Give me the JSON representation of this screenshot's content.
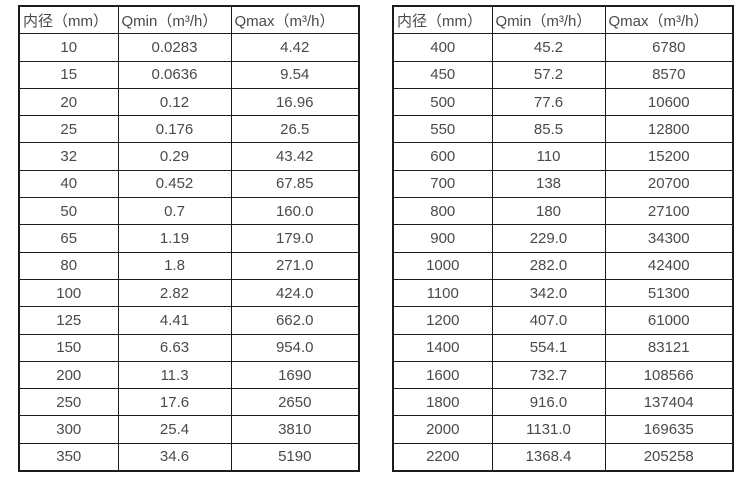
{
  "page": {
    "background_color": "#ffffff",
    "border_color": "#1c1c1c",
    "text_color": "#4a4a4a"
  },
  "tables": [
    {
      "name": "flow-spec-small-diameters",
      "headers": [
        "内径（mm）",
        "Qmin（m³/h）",
        "Qmax（m³/h）"
      ],
      "rows": [
        [
          "10",
          "0.0283",
          "4.42"
        ],
        [
          "15",
          "0.0636",
          "9.54"
        ],
        [
          "20",
          "0.12",
          "16.96"
        ],
        [
          "25",
          "0.176",
          "26.5"
        ],
        [
          "32",
          "0.29",
          "43.42"
        ],
        [
          "40",
          "0.452",
          "67.85"
        ],
        [
          "50",
          "0.7",
          "160.0"
        ],
        [
          "65",
          "1.19",
          "179.0"
        ],
        [
          "80",
          "1.8",
          "271.0"
        ],
        [
          "100",
          "2.82",
          "424.0"
        ],
        [
          "125",
          "4.41",
          "662.0"
        ],
        [
          "150",
          "6.63",
          "954.0"
        ],
        [
          "200",
          "11.3",
          "1690"
        ],
        [
          "250",
          "17.6",
          "2650"
        ],
        [
          "300",
          "25.4",
          "3810"
        ],
        [
          "350",
          "34.6",
          "5190"
        ]
      ]
    },
    {
      "name": "flow-spec-large-diameters",
      "headers": [
        "内径（mm）",
        "Qmin（m³/h）",
        "Qmax（m³/h）"
      ],
      "rows": [
        [
          "400",
          "45.2",
          "6780"
        ],
        [
          "450",
          "57.2",
          "8570"
        ],
        [
          "500",
          "77.6",
          "10600"
        ],
        [
          "550",
          "85.5",
          "12800"
        ],
        [
          "600",
          "110",
          "15200"
        ],
        [
          "700",
          "138",
          "20700"
        ],
        [
          "800",
          "180",
          "27100"
        ],
        [
          "900",
          "229.0",
          "34300"
        ],
        [
          "1000",
          "282.0",
          "42400"
        ],
        [
          "1100",
          "342.0",
          "51300"
        ],
        [
          "1200",
          "407.0",
          "61000"
        ],
        [
          "1400",
          "554.1",
          "83121"
        ],
        [
          "1600",
          "732.7",
          "108566"
        ],
        [
          "1800",
          "916.0",
          "137404"
        ],
        [
          "2000",
          "1131.0",
          "169635"
        ],
        [
          "2200",
          "1368.4",
          "205258"
        ]
      ]
    }
  ],
  "chart_data": [
    {
      "type": "table",
      "title": "",
      "columns": [
        "内径（mm）",
        "Qmin（m³/h）",
        "Qmax（m³/h）"
      ],
      "rows": [
        [
          10,
          0.0283,
          4.42
        ],
        [
          15,
          0.0636,
          9.54
        ],
        [
          20,
          0.12,
          16.96
        ],
        [
          25,
          0.176,
          26.5
        ],
        [
          32,
          0.29,
          43.42
        ],
        [
          40,
          0.452,
          67.85
        ],
        [
          50,
          0.7,
          160.0
        ],
        [
          65,
          1.19,
          179.0
        ],
        [
          80,
          1.8,
          271.0
        ],
        [
          100,
          2.82,
          424.0
        ],
        [
          125,
          4.41,
          662.0
        ],
        [
          150,
          6.63,
          954.0
        ],
        [
          200,
          11.3,
          1690
        ],
        [
          250,
          17.6,
          2650
        ],
        [
          300,
          25.4,
          3810
        ],
        [
          350,
          34.6,
          5190
        ]
      ]
    },
    {
      "type": "table",
      "title": "",
      "columns": [
        "内径（mm）",
        "Qmin（m³/h）",
        "Qmax（m³/h）"
      ],
      "rows": [
        [
          400,
          45.2,
          6780
        ],
        [
          450,
          57.2,
          8570
        ],
        [
          500,
          77.6,
          10600
        ],
        [
          550,
          85.5,
          12800
        ],
        [
          600,
          110,
          15200
        ],
        [
          700,
          138,
          20700
        ],
        [
          800,
          180,
          27100
        ],
        [
          900,
          229.0,
          34300
        ],
        [
          1000,
          282.0,
          42400
        ],
        [
          1100,
          342.0,
          51300
        ],
        [
          1200,
          407.0,
          61000
        ],
        [
          1400,
          554.1,
          83121
        ],
        [
          1600,
          732.7,
          108566
        ],
        [
          1800,
          916.0,
          137404
        ],
        [
          2000,
          1131.0,
          169635
        ],
        [
          2200,
          1368.4,
          205258
        ]
      ]
    }
  ]
}
